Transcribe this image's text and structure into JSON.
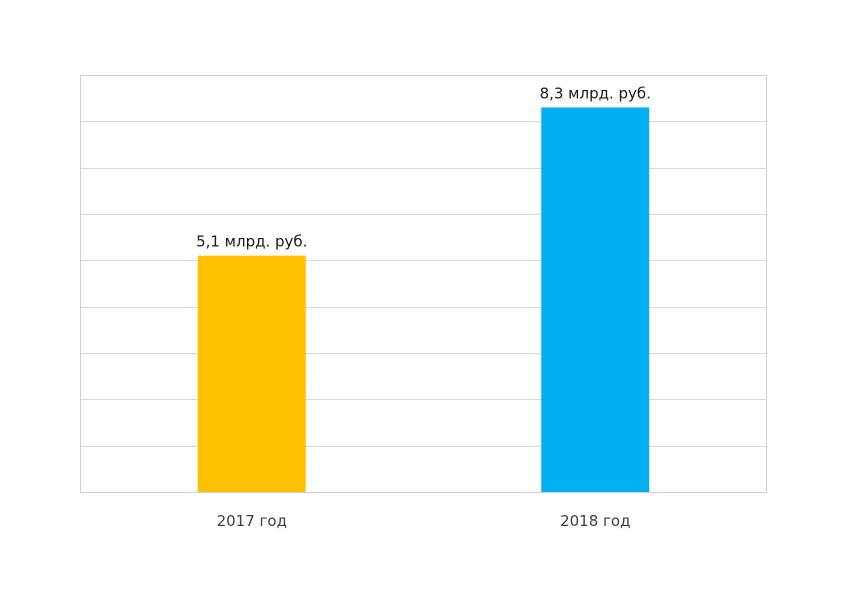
{
  "chart_data": {
    "type": "bar",
    "categories": [
      "2017 год",
      "2018 год"
    ],
    "values": [
      5.1,
      8.3
    ],
    "data_labels": [
      "5,1 млрд. руб.",
      "8,3 млрд. руб."
    ],
    "colors": [
      "#FFC000",
      "#00B0F0"
    ],
    "ylim": [
      0,
      9
    ],
    "y_gridline_step": 1,
    "grid": true,
    "legend": "none",
    "title": "",
    "xlabel": "",
    "ylabel": ""
  }
}
